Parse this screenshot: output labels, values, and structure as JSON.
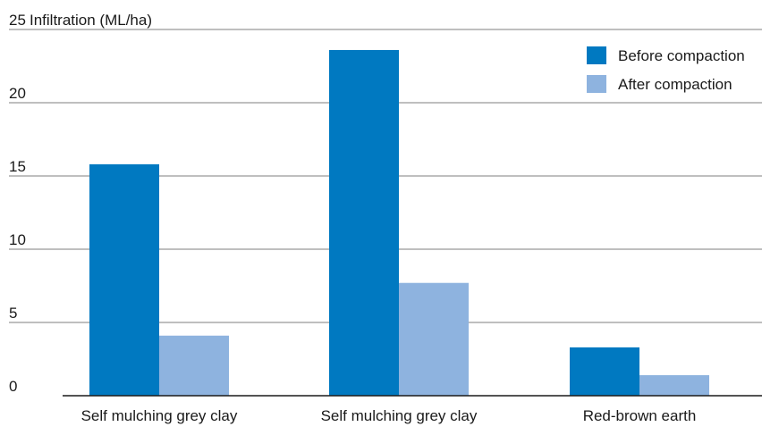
{
  "chart_data": {
    "type": "bar",
    "title": "",
    "ylabel": "Infiltration (ML/ha)",
    "xlabel": "",
    "ylim": [
      0,
      25
    ],
    "yticks": [
      0,
      5,
      10,
      15,
      20,
      25
    ],
    "grid": true,
    "legend_position": "top-right",
    "categories": [
      "Self mulching grey clay",
      "Self mulching grey clay",
      "Red-brown earth"
    ],
    "series": [
      {
        "name": "Before compaction",
        "color": "#0079c1",
        "values": [
          15.8,
          23.6,
          3.3
        ]
      },
      {
        "name": "After compaction",
        "color": "#8eb3df",
        "values": [
          4.1,
          7.7,
          1.4
        ]
      }
    ]
  }
}
